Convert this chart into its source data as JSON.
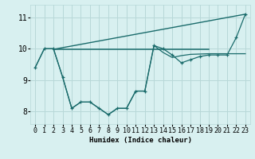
{
  "title": "",
  "xlabel": "Humidex (Indice chaleur)",
  "bg_color": "#d8f0f0",
  "grid_color": "#b8d8d8",
  "line_color": "#1a6b6b",
  "xlim": [
    -0.5,
    23.5
  ],
  "ylim": [
    7.6,
    11.4
  ],
  "yticks": [
    8,
    9,
    10,
    11
  ],
  "xticks": [
    0,
    1,
    2,
    3,
    4,
    5,
    6,
    7,
    8,
    9,
    10,
    11,
    12,
    13,
    14,
    15,
    16,
    17,
    18,
    19,
    20,
    21,
    22,
    23
  ],
  "series1_x": [
    0,
    1,
    2,
    3,
    4,
    5,
    6,
    7,
    8,
    9,
    10,
    11,
    12,
    13,
    14,
    15,
    16,
    17,
    18,
    19,
    20,
    21,
    22,
    23
  ],
  "series1_y": [
    9.4,
    10.0,
    10.0,
    9.1,
    8.1,
    8.3,
    8.3,
    8.1,
    7.9,
    8.1,
    8.1,
    8.65,
    8.65,
    10.1,
    10.0,
    9.8,
    9.55,
    9.65,
    9.75,
    9.8,
    9.8,
    9.8,
    10.35,
    11.1
  ],
  "hline_y": 9.98,
  "hline_x_start": 2,
  "hline_x_end": 19,
  "diag_x_start": 2,
  "diag_x_end": 23,
  "diag_y_start": 9.98,
  "diag_y_end": 11.1,
  "smooth_x": [
    0,
    1,
    2,
    3,
    4,
    5,
    6,
    7,
    8,
    9,
    10,
    11,
    12,
    13,
    14,
    15,
    16,
    17,
    18,
    19,
    20,
    21,
    22,
    23
  ],
  "smooth_y": [
    9.4,
    10.0,
    10.0,
    9.1,
    8.1,
    8.3,
    8.3,
    8.1,
    7.9,
    8.1,
    8.1,
    8.65,
    8.65,
    10.1,
    9.88,
    9.72,
    9.78,
    9.82,
    9.83,
    9.84,
    9.84,
    9.84,
    9.84,
    9.84
  ]
}
